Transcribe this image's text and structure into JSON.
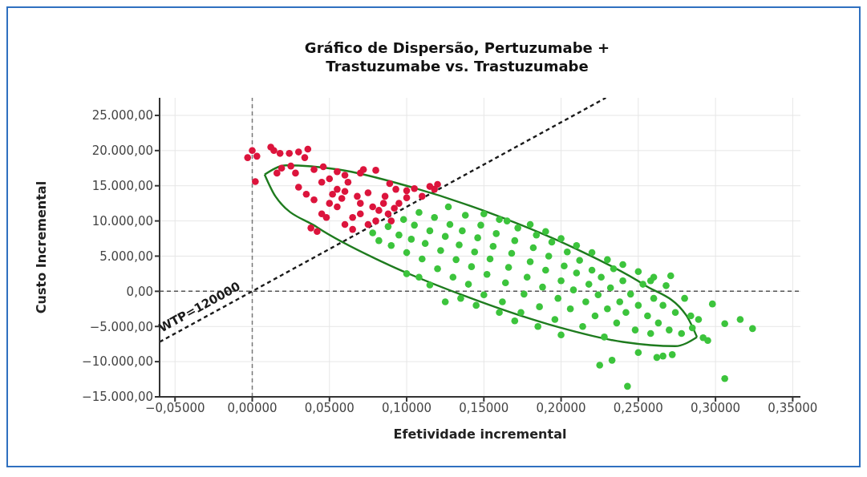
{
  "chart_data": {
    "type": "scatter",
    "title": "Gráfico de Dispersão, Pertuzumabe + Trastuzumabe vs. Trastuzumabe",
    "xlabel": "Efetividade incremental",
    "ylabel": "Custo Incremental",
    "xlim": [
      -0.06,
      0.355
    ],
    "ylim": [
      -15000,
      27500
    ],
    "xticks": [
      {
        "value": -0.05,
        "label": "−0,05000"
      },
      {
        "value": 0,
        "label": "0,00000"
      },
      {
        "value": 0.05,
        "label": "0,05000"
      },
      {
        "value": 0.1,
        "label": "0,10000"
      },
      {
        "value": 0.15,
        "label": "0,15000"
      },
      {
        "value": 0.2,
        "label": "0,20000"
      },
      {
        "value": 0.25,
        "label": "0,25000"
      },
      {
        "value": 0.3,
        "label": "0,30000"
      },
      {
        "value": 0.35,
        "label": "0,35000"
      }
    ],
    "yticks": [
      {
        "value": -15000,
        "label": "−15.000,00"
      },
      {
        "value": -10000,
        "label": "−10.000,00"
      },
      {
        "value": -5000,
        "label": "−5.000,00"
      },
      {
        "value": 0,
        "label": "0,00"
      },
      {
        "value": 5000,
        "label": "5.000,00"
      },
      {
        "value": 10000,
        "label": "10.000,00"
      },
      {
        "value": 15000,
        "label": "15.000,00"
      },
      {
        "value": 20000,
        "label": "20.000,00"
      },
      {
        "value": 25000,
        "label": "25.000,00"
      }
    ],
    "grid": true,
    "legend": false,
    "marker": "circle",
    "ref_lines": [
      {
        "axis": "x",
        "value": 0,
        "color": "#777777",
        "line_style": "dashed"
      },
      {
        "axis": "y",
        "value": 0,
        "color": "#555555",
        "line_style": "dashed"
      }
    ],
    "series": [
      {
        "color": "#dc143c",
        "x": [
          -0.003,
          0.0,
          0.003,
          0.002,
          0.012,
          0.014,
          0.018,
          0.024,
          0.03,
          0.036,
          0.034,
          0.019,
          0.016,
          0.025,
          0.028,
          0.04,
          0.046,
          0.055,
          0.06,
          0.07,
          0.072,
          0.08,
          0.089,
          0.093,
          0.1,
          0.105,
          0.115,
          0.12,
          0.118,
          0.11,
          0.03,
          0.035,
          0.04,
          0.045,
          0.05,
          0.055,
          0.06,
          0.062,
          0.068,
          0.07,
          0.075,
          0.078,
          0.082,
          0.085,
          0.088,
          0.09,
          0.092,
          0.08,
          0.075,
          0.07,
          0.065,
          0.06,
          0.055,
          0.05,
          0.048,
          0.045,
          0.042,
          0.038,
          0.065,
          0.086,
          0.095,
          0.1,
          0.058,
          0.052
        ],
        "values": [
          19000,
          20000,
          19200,
          15600,
          20500,
          20000,
          19600,
          19600,
          19800,
          20200,
          19000,
          17500,
          16800,
          17800,
          16800,
          17300,
          17700,
          17000,
          16500,
          16800,
          17300,
          17200,
          15300,
          14500,
          14300,
          14600,
          14900,
          15200,
          14500,
          13500,
          14800,
          13800,
          13000,
          15500,
          16000,
          14500,
          14200,
          15500,
          13500,
          12500,
          14000,
          12000,
          11500,
          12500,
          11000,
          10000,
          11800,
          10000,
          9500,
          11000,
          10500,
          9500,
          12000,
          12500,
          10500,
          11000,
          8500,
          9000,
          8800,
          13500,
          12500,
          13300,
          13200,
          13800
        ]
      },
      {
        "color": "#3cc43c",
        "x": [
          0.078,
          0.082,
          0.088,
          0.09,
          0.095,
          0.098,
          0.1,
          0.103,
          0.105,
          0.108,
          0.11,
          0.112,
          0.115,
          0.118,
          0.12,
          0.122,
          0.125,
          0.127,
          0.128,
          0.13,
          0.132,
          0.134,
          0.136,
          0.138,
          0.14,
          0.142,
          0.144,
          0.146,
          0.148,
          0.15,
          0.152,
          0.154,
          0.156,
          0.158,
          0.16,
          0.162,
          0.164,
          0.166,
          0.168,
          0.17,
          0.172,
          0.174,
          0.176,
          0.178,
          0.18,
          0.182,
          0.184,
          0.186,
          0.188,
          0.19,
          0.192,
          0.194,
          0.196,
          0.198,
          0.2,
          0.202,
          0.204,
          0.206,
          0.208,
          0.21,
          0.212,
          0.214,
          0.216,
          0.218,
          0.22,
          0.222,
          0.224,
          0.226,
          0.228,
          0.23,
          0.232,
          0.234,
          0.236,
          0.238,
          0.24,
          0.242,
          0.245,
          0.248,
          0.25,
          0.253,
          0.256,
          0.258,
          0.26,
          0.263,
          0.266,
          0.268,
          0.27,
          0.274,
          0.278,
          0.28,
          0.284,
          0.289,
          0.1,
          0.108,
          0.115,
          0.125,
          0.135,
          0.145,
          0.16,
          0.17,
          0.185,
          0.2,
          0.18,
          0.19,
          0.2,
          0.21,
          0.22,
          0.23,
          0.24,
          0.25,
          0.26,
          0.15,
          0.165,
          0.243,
          0.306,
          0.225,
          0.233,
          0.316,
          0.324,
          0.306,
          0.295,
          0.292,
          0.298,
          0.271,
          0.258,
          0.25,
          0.266,
          0.262,
          0.272,
          0.285
        ],
        "values": [
          8300,
          7200,
          9200,
          6500,
          8000,
          10200,
          5500,
          7400,
          9400,
          11200,
          4600,
          6800,
          8600,
          10500,
          3200,
          5800,
          7800,
          12000,
          9500,
          2000,
          4500,
          6600,
          8600,
          10800,
          1000,
          3500,
          5600,
          7600,
          9400,
          -500,
          2400,
          4600,
          6400,
          8200,
          10200,
          -1500,
          1200,
          3400,
          5400,
          7200,
          9000,
          -3000,
          -400,
          2000,
          4200,
          6200,
          8000,
          -2200,
          600,
          3000,
          5000,
          7000,
          -4000,
          -1000,
          1500,
          3600,
          5600,
          -2500,
          200,
          2600,
          4400,
          -5000,
          -1500,
          1000,
          3000,
          -3500,
          -500,
          2000,
          -6500,
          -2500,
          500,
          3200,
          -4500,
          -1500,
          1500,
          -3000,
          -400,
          -5500,
          -2000,
          1000,
          -3500,
          -6000,
          -1000,
          -4500,
          -2000,
          800,
          -5500,
          -3000,
          -6000,
          -1000,
          -3500,
          -4000,
          2500,
          2000,
          900,
          -1500,
          -1000,
          -2000,
          -3000,
          -4200,
          -5000,
          -6200,
          9500,
          8500,
          7500,
          6500,
          5500,
          4500,
          3800,
          2800,
          2000,
          11000,
          10000,
          -13500,
          -12400,
          -10500,
          -9800,
          -4000,
          -5300,
          -4600,
          -7000,
          -6600,
          -1800,
          2200,
          1500,
          -8700,
          -9200,
          -9400,
          -9000,
          -5200
        ]
      },
      {
        "type": "line",
        "name": "WTP=120000",
        "color": "#1a1a1a",
        "line_style": "dashed",
        "marker": "none",
        "x": [
          -0.06,
          0.229
        ],
        "values": [
          -7200,
          27500
        ]
      },
      {
        "type": "line",
        "color": "#1e7b1e",
        "line_style": "solid",
        "marker": "none",
        "x": [
          0.008,
          0.022,
          0.056,
          0.103,
          0.158,
          0.211,
          0.254,
          0.281,
          0.288
        ],
        "values": [
          16600,
          17900,
          17300,
          14800,
          10800,
          5900,
          900,
          -3400,
          -6500
        ]
      },
      {
        "type": "line",
        "color": "#1e7b1e",
        "line_style": "solid",
        "marker": "none",
        "x": [
          0.008,
          0.015,
          0.042,
          0.085,
          0.138,
          0.192,
          0.24,
          0.274,
          0.288
        ],
        "values": [
          16600,
          13500,
          9100,
          4100,
          -700,
          -4700,
          -7200,
          -7800,
          -6500
        ]
      }
    ]
  }
}
